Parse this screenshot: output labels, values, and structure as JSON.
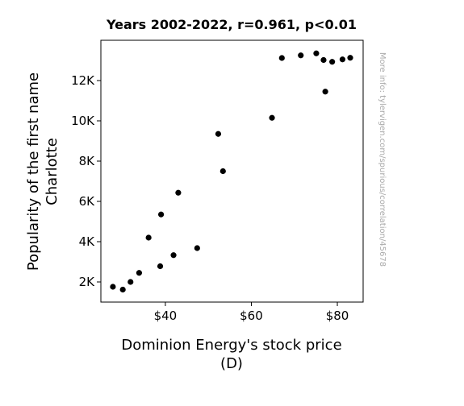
{
  "chart_data": {
    "type": "scatter",
    "title": "Years 2002-2022, r=0.961, p<0.01",
    "xlabel_line1": "Dominion Energy's stock price",
    "xlabel_line2": "(D)",
    "ylabel_line1": "Popularity of the first name",
    "ylabel_line2": "Charlotte",
    "xlim": [
      25,
      86
    ],
    "ylim": [
      1000,
      14000
    ],
    "xticks": [
      {
        "value": 40,
        "label": "$40"
      },
      {
        "value": 60,
        "label": "$60"
      },
      {
        "value": 80,
        "label": "$80"
      }
    ],
    "yticks": [
      {
        "value": 2000,
        "label": "2K"
      },
      {
        "value": 4000,
        "label": "4K"
      },
      {
        "value": 6000,
        "label": "6K"
      },
      {
        "value": 8000,
        "label": "8K"
      },
      {
        "value": 10000,
        "label": "10K"
      },
      {
        "value": 12000,
        "label": "12K"
      }
    ],
    "grid": false,
    "marker_color": "#000000",
    "points": [
      {
        "x": 27.8,
        "y": 1760
      },
      {
        "x": 30.1,
        "y": 1620
      },
      {
        "x": 31.9,
        "y": 2000
      },
      {
        "x": 33.9,
        "y": 2450
      },
      {
        "x": 36.1,
        "y": 4200
      },
      {
        "x": 38.8,
        "y": 2780
      },
      {
        "x": 39.0,
        "y": 5350
      },
      {
        "x": 41.9,
        "y": 3330
      },
      {
        "x": 43.0,
        "y": 6430
      },
      {
        "x": 47.4,
        "y": 3680
      },
      {
        "x": 52.3,
        "y": 9350
      },
      {
        "x": 53.4,
        "y": 7500
      },
      {
        "x": 64.8,
        "y": 10150
      },
      {
        "x": 67.1,
        "y": 13120
      },
      {
        "x": 71.5,
        "y": 13250
      },
      {
        "x": 75.1,
        "y": 13350
      },
      {
        "x": 76.8,
        "y": 13020
      },
      {
        "x": 77.2,
        "y": 11450
      },
      {
        "x": 78.8,
        "y": 12930
      },
      {
        "x": 81.2,
        "y": 13050
      },
      {
        "x": 83.0,
        "y": 13130
      }
    ]
  },
  "watermark": "More info: tylervigen.com/spurious/correlation/45678"
}
